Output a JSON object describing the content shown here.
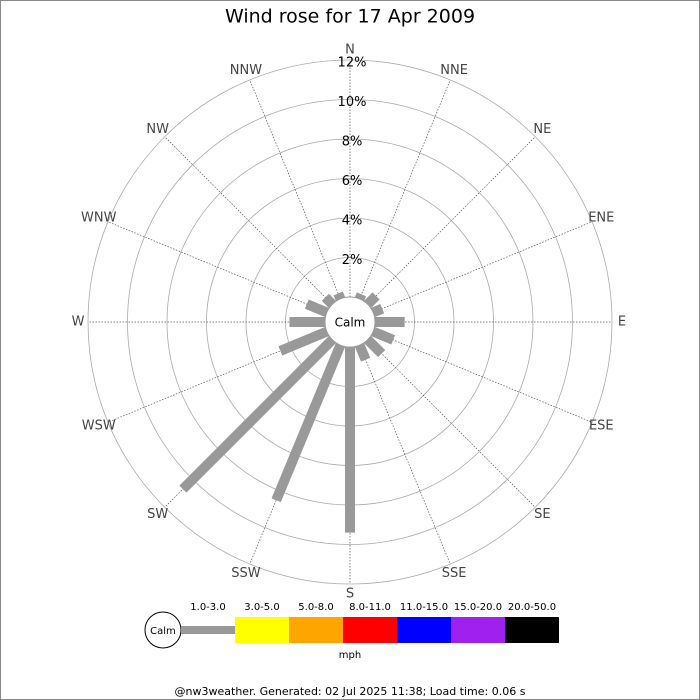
{
  "chart_data": {
    "type": "windrose",
    "title": "Wind rose for 17 Apr 2009",
    "directions": [
      "N",
      "NNE",
      "NE",
      "ENE",
      "E",
      "ESE",
      "SE",
      "SSE",
      "S",
      "SSW",
      "SW",
      "WSW",
      "W",
      "WNW",
      "NW",
      "NNW"
    ],
    "values": [
      0,
      0.25,
      0.6,
      0.5,
      1.5,
      1.1,
      1.0,
      0.8,
      9.4,
      8.5,
      10.7,
      2.55,
      1.8,
      1.1,
      0.5,
      0.3
    ],
    "color": "#999999",
    "rlim": [
      0,
      12
    ],
    "rticks": [
      {
        "value": 2,
        "label": "2%"
      },
      {
        "value": 4,
        "label": "4%"
      },
      {
        "value": 6,
        "label": "6%"
      },
      {
        "value": 8,
        "label": "8%"
      },
      {
        "value": 10,
        "label": "10%"
      },
      {
        "value": 12,
        "label": "12%"
      }
    ],
    "center_label": "Calm",
    "legend": {
      "calm_label": "Calm",
      "unit": "mph",
      "bins": [
        {
          "label": "1.0-3.0",
          "color": "#999999"
        },
        {
          "label": "3.0-5.0",
          "color": "#ffff00"
        },
        {
          "label": "5.0-8.0",
          "color": "#ffa500"
        },
        {
          "label": "8.0-11.0",
          "color": "#ff0000"
        },
        {
          "label": "11.0-15.0",
          "color": "#0000ff"
        },
        {
          "label": "15.0-20.0",
          "color": "#a020f0"
        },
        {
          "label": "20.0-50.0",
          "color": "#000000"
        }
      ]
    },
    "footer": "@nw3weather.  Generated: 02 Jul 2025 11:38; Load time: 0.06 s"
  }
}
